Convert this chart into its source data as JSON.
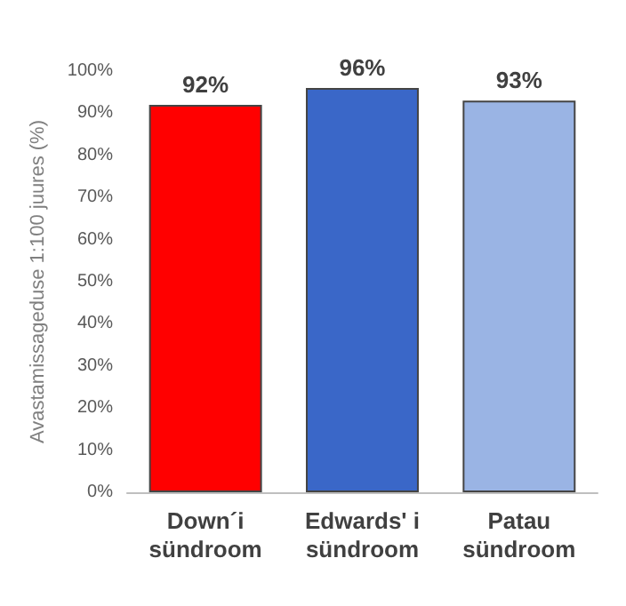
{
  "chart_data": {
    "type": "bar",
    "ylabel": "Avastamissageduse 1:100 juures (%)",
    "categories": [
      "Down´i\nsündroom",
      "Edwards' i\nsündroom",
      "Patau\nsündroom"
    ],
    "values": [
      92,
      96,
      93
    ],
    "colors": [
      "#ff0000",
      "#3a67c8",
      "#9ab4e4"
    ],
    "value_labels": [
      "92%",
      "96%",
      "93%"
    ],
    "ylim": [
      0,
      100
    ],
    "yticks": [
      {
        "value": 0,
        "label": "0%"
      },
      {
        "value": 10,
        "label": "10%"
      },
      {
        "value": 20,
        "label": "20%"
      },
      {
        "value": 30,
        "label": "30%"
      },
      {
        "value": 40,
        "label": "40%"
      },
      {
        "value": 50,
        "label": "50%"
      },
      {
        "value": 60,
        "label": "60%"
      },
      {
        "value": 70,
        "label": "70%"
      },
      {
        "value": 80,
        "label": "80%"
      },
      {
        "value": 90,
        "label": "90%"
      },
      {
        "value": 100,
        "label": "100%"
      }
    ],
    "grid": false
  }
}
